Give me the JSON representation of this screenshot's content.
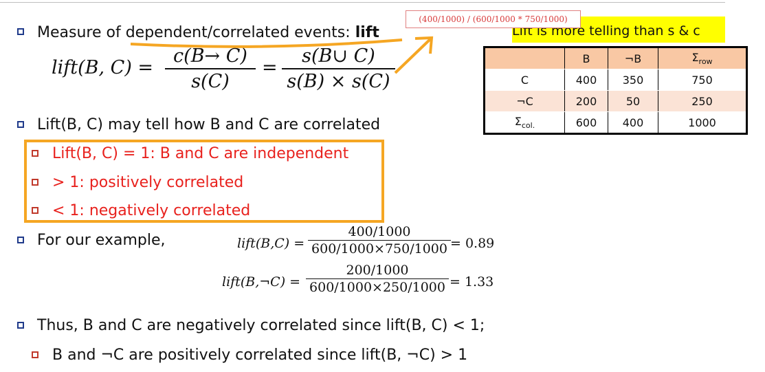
{
  "bullets": {
    "measure_prefix": "Measure of ",
    "measure_underlined": "dependent/correlated events",
    "measure_colon": ": ",
    "measure_bold": "lift",
    "lift_tell": "Lift(B, C) may tell how B and C are correlated",
    "sub1": "Lift(B, C) = 1: B and C are independent",
    "sub2": "> 1:  positively correlated",
    "sub3": "< 1: negatively correlated",
    "example": "For our example,",
    "thus": "Thus, B and C are negatively correlated since lift(B, C) < 1;",
    "thus_sub": "B and ¬C are positively correlated since lift(B, ¬C) > 1"
  },
  "formula": {
    "lhs": "lift(B, C) =",
    "num1": "c(B→ C)",
    "den1": "s(C)",
    "eq": "=",
    "num2": "s(B∪ C)",
    "den2": "s(B) × s(C)"
  },
  "note": {
    "annotation": "(400/1000)  / (600/1000 * 750/1000)",
    "highlight": "Lift is more telling than s & c"
  },
  "table": {
    "headers": [
      "",
      "B",
      "¬B",
      "Σ",
      "row"
    ],
    "rows": [
      [
        "C",
        "400",
        "350",
        "750"
      ],
      [
        "¬C",
        "200",
        "50",
        "250"
      ],
      [
        "Σ",
        "600",
        "400",
        "1000"
      ]
    ],
    "col_sub": "col."
  },
  "examples": {
    "ex1_lhs": "lift(B,C) =",
    "ex1_num": "400/1000",
    "ex1_den": "600/1000×750/1000",
    "ex1_rhs": "= 0.89",
    "ex2_lhs": "lift(B,¬C) =",
    "ex2_num": "200/1000",
    "ex2_den": "600/1000×250/1000",
    "ex2_rhs": "= 1.33"
  },
  "colors": {
    "bullet": "#1f3a8a",
    "red_text": "#e8211d",
    "orange": "#f5a623",
    "highlight": "#ffff00"
  }
}
